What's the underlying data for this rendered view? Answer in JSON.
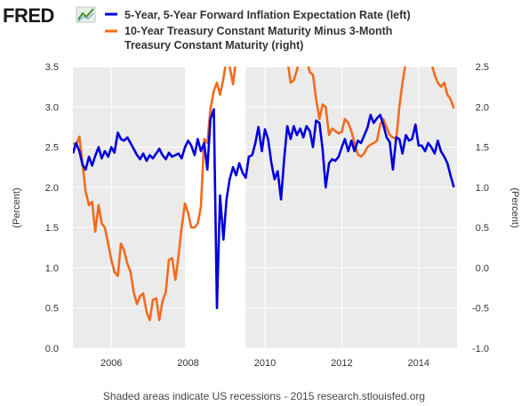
{
  "header": {
    "logo_text": "FRED",
    "legend": [
      {
        "label_lines": [
          "5-Year, 5-Year Forward Inflation Expectation Rate (left)"
        ],
        "color": "#0000dd"
      },
      {
        "label_lines": [
          "10-Year Treasury Constant Maturity Minus 3-Month",
          "Treasury Constant Maturity (right)"
        ],
        "color": "#f26b1d"
      }
    ]
  },
  "footer": {
    "note": "Shaded areas indicate US recessions - 2015 research.stlouisfed.org"
  },
  "colors": {
    "left_series": "#0000dd",
    "right_series": "#f26b1d",
    "plot_background": "#ebebeb",
    "recession_shade": "#ffffff",
    "grid": "#ffffff"
  },
  "chart_data": {
    "type": "line",
    "grid": true,
    "legend_position": "top",
    "x_range": [
      2005.0,
      2015.0
    ],
    "x_ticks": [
      "2006",
      "2008",
      "2010",
      "2012",
      "2014"
    ],
    "y_left": {
      "label": "(Percent)",
      "range": [
        0.0,
        3.5
      ],
      "ticks": [
        "0.0",
        "0.5",
        "1.0",
        "1.5",
        "2.0",
        "2.5",
        "3.0",
        "3.5"
      ]
    },
    "y_right": {
      "label": "(Percent)",
      "range": [
        -1.0,
        2.5
      ],
      "ticks": [
        "-1.0",
        "-0.5",
        "0.0",
        "0.5",
        "1.0",
        "1.5",
        "2.0",
        "2.5"
      ]
    },
    "recessions": [
      [
        2007.92,
        2009.5
      ]
    ],
    "series": [
      {
        "name": "5-Year, 5-Year Forward Inflation Expectation Rate (left)",
        "axis": "left",
        "x": [
          2005.0,
          2005.08,
          2005.17,
          2005.25,
          2005.33,
          2005.42,
          2005.5,
          2005.58,
          2005.67,
          2005.75,
          2005.83,
          2005.92,
          2006.0,
          2006.08,
          2006.17,
          2006.25,
          2006.33,
          2006.42,
          2006.5,
          2006.58,
          2006.67,
          2006.75,
          2006.83,
          2006.92,
          2007.0,
          2007.08,
          2007.17,
          2007.25,
          2007.33,
          2007.42,
          2007.5,
          2007.58,
          2007.67,
          2007.75,
          2007.83,
          2007.92,
          2008.0,
          2008.08,
          2008.17,
          2008.25,
          2008.33,
          2008.42,
          2008.5,
          2008.58,
          2008.67,
          2008.75,
          2008.83,
          2008.92,
          2009.0,
          2009.08,
          2009.17,
          2009.25,
          2009.33,
          2009.42,
          2009.5,
          2009.58,
          2009.67,
          2009.75,
          2009.83,
          2009.92,
          2010.0,
          2010.08,
          2010.17,
          2010.25,
          2010.33,
          2010.42,
          2010.5,
          2010.58,
          2010.67,
          2010.75,
          2010.83,
          2010.92,
          2011.0,
          2011.08,
          2011.17,
          2011.25,
          2011.33,
          2011.42,
          2011.5,
          2011.58,
          2011.67,
          2011.75,
          2011.83,
          2011.92,
          2012.0,
          2012.08,
          2012.17,
          2012.25,
          2012.33,
          2012.42,
          2012.5,
          2012.58,
          2012.67,
          2012.75,
          2012.83,
          2012.92,
          2013.0,
          2013.08,
          2013.17,
          2013.25,
          2013.33,
          2013.42,
          2013.5,
          2013.58,
          2013.67,
          2013.75,
          2013.83,
          2013.92,
          2014.0,
          2014.08,
          2014.17,
          2014.25,
          2014.33,
          2014.42,
          2014.5,
          2014.58,
          2014.67,
          2014.75,
          2014.83,
          2014.92
        ],
        "values": [
          2.42,
          2.55,
          2.45,
          2.28,
          2.22,
          2.38,
          2.27,
          2.39,
          2.5,
          2.36,
          2.45,
          2.38,
          2.5,
          2.43,
          2.68,
          2.6,
          2.58,
          2.62,
          2.55,
          2.48,
          2.4,
          2.35,
          2.42,
          2.33,
          2.4,
          2.36,
          2.42,
          2.48,
          2.4,
          2.35,
          2.43,
          2.38,
          2.4,
          2.42,
          2.36,
          2.5,
          2.58,
          2.52,
          2.4,
          2.6,
          2.45,
          2.55,
          2.22,
          2.85,
          2.97,
          0.5,
          1.9,
          1.35,
          1.85,
          2.1,
          2.25,
          2.15,
          2.3,
          2.18,
          2.12,
          2.38,
          2.4,
          2.55,
          2.75,
          2.45,
          2.72,
          2.6,
          2.3,
          2.1,
          2.2,
          1.85,
          2.35,
          2.76,
          2.6,
          2.76,
          2.65,
          2.73,
          2.62,
          2.76,
          2.7,
          2.5,
          2.83,
          2.8,
          2.48,
          2.0,
          2.3,
          2.35,
          2.33,
          2.38,
          2.5,
          2.6,
          2.45,
          2.58,
          2.45,
          2.58,
          2.55,
          2.64,
          2.74,
          2.9,
          2.8,
          2.86,
          2.9,
          2.78,
          2.62,
          2.56,
          2.22,
          2.62,
          2.6,
          2.42,
          2.65,
          2.58,
          2.6,
          2.78,
          2.52,
          2.52,
          2.45,
          2.55,
          2.5,
          2.42,
          2.58,
          2.45,
          2.38,
          2.3,
          2.15,
          2.0
        ]
      },
      {
        "name": "10-Year Treasury Constant Maturity Minus 3-Month Treasury Constant Maturity (right)",
        "axis": "right",
        "x": [
          2005.0,
          2005.08,
          2005.17,
          2005.25,
          2005.33,
          2005.42,
          2005.5,
          2005.58,
          2005.67,
          2005.75,
          2005.83,
          2005.92,
          2006.0,
          2006.08,
          2006.17,
          2006.25,
          2006.33,
          2006.42,
          2006.5,
          2006.58,
          2006.67,
          2006.75,
          2006.83,
          2006.92,
          2007.0,
          2007.08,
          2007.17,
          2007.25,
          2007.33,
          2007.42,
          2007.5,
          2007.58,
          2007.67,
          2007.75,
          2007.83,
          2007.92,
          2008.0,
          2008.08,
          2008.17,
          2008.25,
          2008.33,
          2008.42,
          2008.5,
          2008.58,
          2008.67,
          2008.75,
          2008.83,
          2008.92,
          2009.0,
          2009.08,
          2009.17,
          2009.25,
          2010.5,
          2010.58,
          2010.67,
          2010.75,
          2010.83,
          2010.92,
          2011.0,
          2011.08,
          2011.17,
          2011.25,
          2011.33,
          2011.42,
          2011.5,
          2011.58,
          2011.67,
          2011.75,
          2011.83,
          2011.92,
          2012.0,
          2012.08,
          2012.17,
          2012.25,
          2012.33,
          2012.42,
          2012.5,
          2012.58,
          2012.67,
          2012.75,
          2012.83,
          2012.92,
          2013.0,
          2013.08,
          2013.17,
          2013.25,
          2013.33,
          2013.42,
          2013.5,
          2013.58,
          2013.67,
          2014.33,
          2014.42,
          2014.5,
          2014.58,
          2014.67,
          2014.75,
          2014.83,
          2014.92
        ],
        "values": [
          1.55,
          1.52,
          1.63,
          1.3,
          0.95,
          0.78,
          0.82,
          0.45,
          0.78,
          0.55,
          0.5,
          0.3,
          0.1,
          -0.05,
          -0.1,
          0.3,
          0.22,
          0.05,
          -0.05,
          -0.3,
          -0.45,
          -0.35,
          -0.32,
          -0.55,
          -0.65,
          -0.4,
          -0.38,
          -0.65,
          -0.42,
          -0.3,
          0.1,
          0.12,
          -0.15,
          0.15,
          0.5,
          0.8,
          0.68,
          0.5,
          0.5,
          0.55,
          0.75,
          1.6,
          1.55,
          1.97,
          2.2,
          2.3,
          2.15,
          2.35,
          2.6,
          2.5,
          2.28,
          2.6,
          2.7,
          2.6,
          2.3,
          2.33,
          2.45,
          2.7,
          2.6,
          2.6,
          2.43,
          2.4,
          2.1,
          1.85,
          2.03,
          2.0,
          1.65,
          1.73,
          1.7,
          1.67,
          1.69,
          1.85,
          1.8,
          1.7,
          1.55,
          1.41,
          1.38,
          1.42,
          1.5,
          1.53,
          1.55,
          1.58,
          1.78,
          1.85,
          1.74,
          1.65,
          1.62,
          1.6,
          2.0,
          2.3,
          2.55,
          2.55,
          2.4,
          2.3,
          2.25,
          2.3,
          2.15,
          2.1,
          1.98
        ]
      }
    ]
  }
}
